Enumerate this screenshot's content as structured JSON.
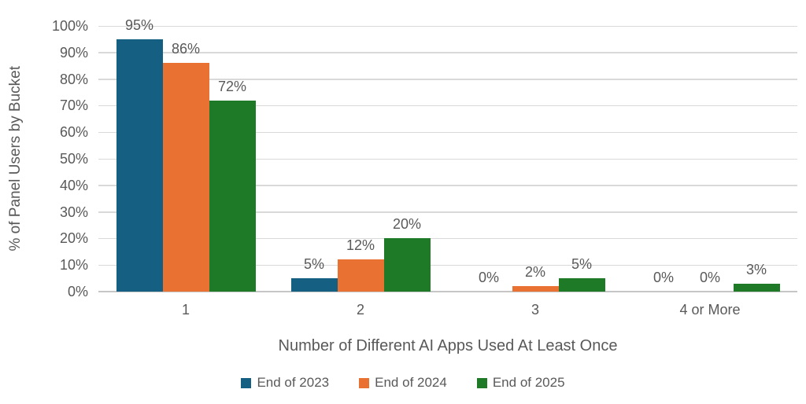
{
  "chart_data": {
    "type": "bar",
    "title": "",
    "categories": [
      "1",
      "2",
      "3",
      "4 or More"
    ],
    "series": [
      {
        "name": "End of 2023",
        "color": "#156082",
        "values": [
          95,
          5,
          0,
          0
        ]
      },
      {
        "name": "End of 2024",
        "color": "#E97132",
        "values": [
          86,
          12,
          2,
          0
        ]
      },
      {
        "name": "End of 2025",
        "color": "#1F7A28",
        "values": [
          72,
          20,
          5,
          3
        ]
      }
    ],
    "xlabel": "Number of Different AI Apps Used At Least Once",
    "ylabel": "% of Panel Users by Bucket",
    "ylim": [
      0,
      100
    ],
    "ytick_step": 10,
    "ytick_labels": [
      "0%",
      "10%",
      "20%",
      "30%",
      "40%",
      "50%",
      "60%",
      "70%",
      "80%",
      "90%",
      "100%"
    ],
    "value_label_suffix": "%",
    "grid": true,
    "legend_position": "bottom"
  },
  "colors": {
    "text": "#595959",
    "gridline": "#D9D9D9",
    "axis_line": "#C6C6C6",
    "background": "#FFFFFF"
  }
}
